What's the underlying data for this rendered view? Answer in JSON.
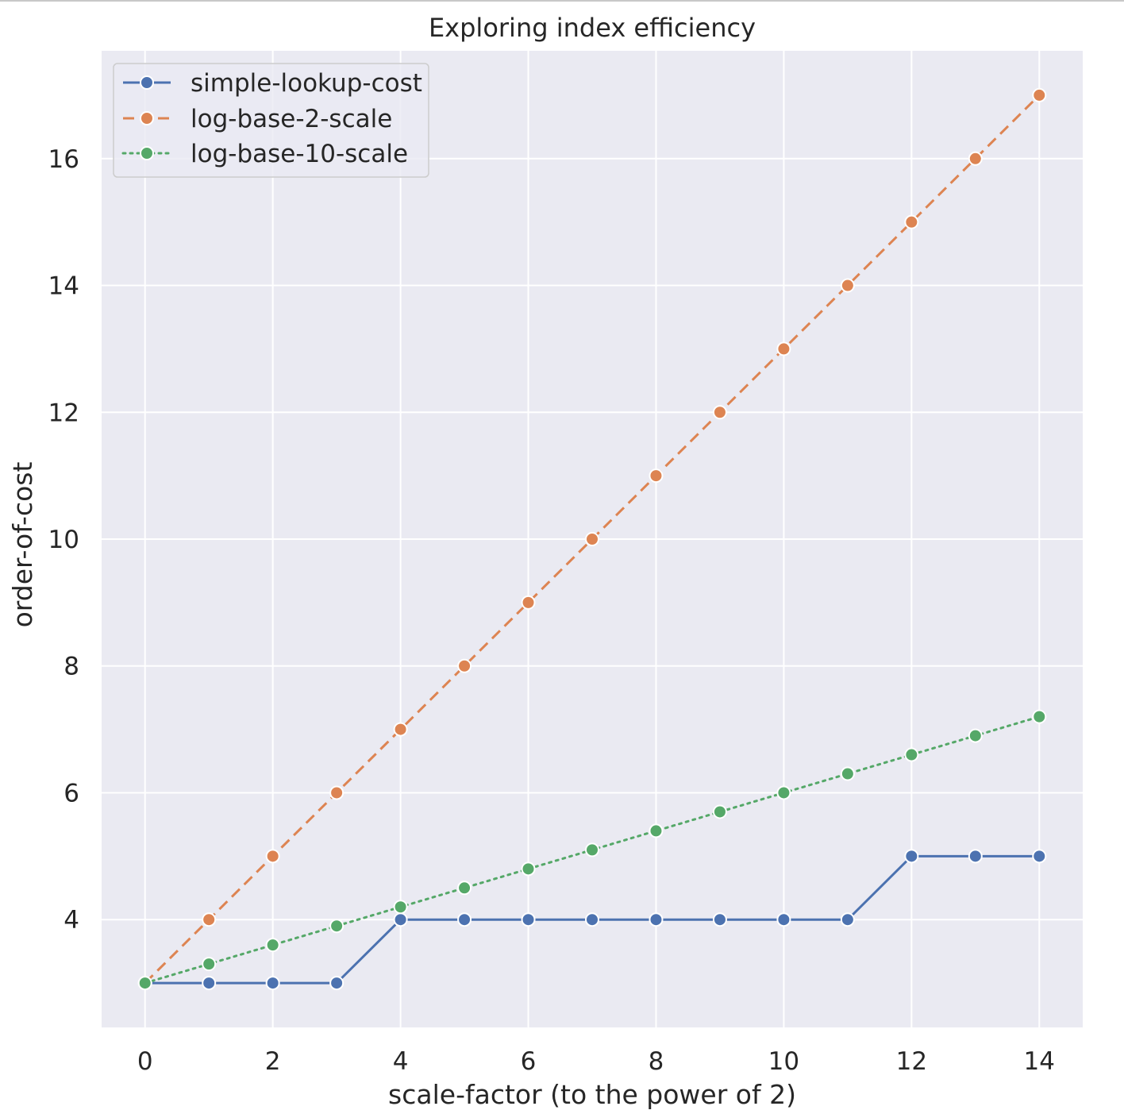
{
  "chart_data": {
    "type": "line",
    "title": "Exploring index efficiency",
    "xlabel": "scale-factor (to the power of 2)",
    "ylabel": "order-of-cost",
    "x": [
      0,
      1,
      2,
      3,
      4,
      5,
      6,
      7,
      8,
      9,
      10,
      11,
      12,
      13,
      14
    ],
    "xlim": [
      -0.68,
      14.68
    ],
    "ylim": [
      2.3,
      17.7
    ],
    "xticks": [
      0,
      2,
      4,
      6,
      8,
      10,
      12,
      14
    ],
    "yticks": [
      4,
      6,
      8,
      10,
      12,
      14,
      16
    ],
    "grid": true,
    "background": "#eaeaf2",
    "grid_color": "#ffffff",
    "legend_position": "top-left",
    "series": [
      {
        "name": "simple-lookup-cost",
        "color": "#4c72b0",
        "line_style": "solid",
        "marker": "circle",
        "values": [
          3,
          3,
          3,
          3,
          4,
          4,
          4,
          4,
          4,
          4,
          4,
          4,
          5,
          5,
          5
        ]
      },
      {
        "name": "log-base-2-scale",
        "color": "#dd8452",
        "line_style": "dashed",
        "marker": "circle",
        "values": [
          3,
          4,
          5,
          6,
          7,
          8,
          9,
          10,
          11,
          12,
          13,
          14,
          15,
          16,
          17
        ]
      },
      {
        "name": "log-base-10-scale",
        "color": "#55a868",
        "line_style": "dotted",
        "marker": "circle",
        "values": [
          3,
          3.3,
          3.6,
          3.9,
          4.2,
          4.5,
          4.8,
          5.1,
          5.4,
          5.7,
          6.0,
          6.3,
          6.6,
          6.9,
          7.2
        ]
      }
    ]
  }
}
